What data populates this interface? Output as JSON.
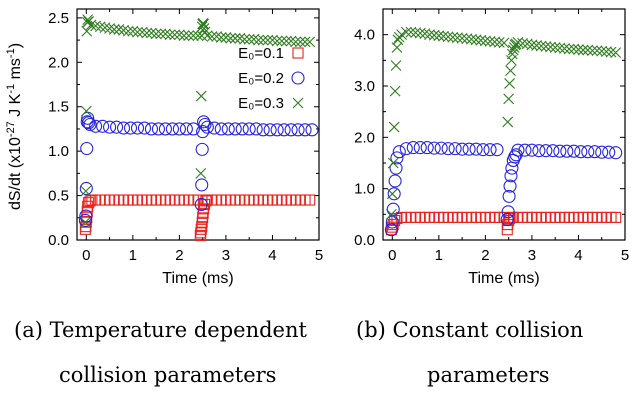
{
  "captions": {
    "a_line1": "(a) Temperature dependent",
    "a_line2": "collision parameters",
    "b_line1": "(b) Constant collision",
    "b_line2": "parameters"
  },
  "y_label_html": "dS/dt (x10<tspan dy=\"-6\" font-size=\"11\">-27</tspan><tspan dy=\"6\"> J K</tspan><tspan dy=\"-6\" font-size=\"11\">-1</tspan><tspan dy=\"6\"> ms</tspan><tspan dy=\"-6\" font-size=\"11\">-1</tspan><tspan dy=\"6\">)</tspan>",
  "legend": [
    {
      "label": "E₀=0.1",
      "marker": "square",
      "color": "#e8241c"
    },
    {
      "label": "E₀=0.2",
      "marker": "circle",
      "color": "#2323e0"
    },
    {
      "label": "E₀=0.3",
      "marker": "x",
      "color": "#2e7d1e"
    }
  ],
  "chart_data": [
    {
      "type": "scatter",
      "panel": "a",
      "xlabel": "Time (ms)",
      "ylabel": "dS/dt (x10^-27 J K^-1 ms^-1)",
      "xlim": [
        -0.2,
        5.0
      ],
      "ylim": [
        0,
        2.6
      ],
      "xticks": [
        0,
        1,
        2,
        3,
        4,
        5
      ],
      "yticks": [
        0.0,
        0.5,
        1.0,
        1.5,
        2.0,
        2.5
      ],
      "ytick_labels": [
        "0.0",
        "0.5",
        "1.0",
        "1.5",
        "2.0",
        "2.5"
      ],
      "legend_position": "top-right",
      "series": [
        {
          "name": "E₀=0.1",
          "marker": "square",
          "color": "#e8241c",
          "x": [
            -0.02,
            -0.01,
            0.0,
            0.01,
            0.02,
            0.03,
            0.05,
            0.08,
            0.12,
            0.2,
            0.3,
            0.4,
            0.5,
            0.6,
            0.7,
            0.8,
            0.9,
            1.0,
            1.1,
            1.2,
            1.3,
            1.4,
            1.5,
            1.6,
            1.7,
            1.8,
            1.9,
            2.0,
            2.1,
            2.2,
            2.3,
            2.4,
            2.45,
            2.46,
            2.47,
            2.48,
            2.49,
            2.5,
            2.51,
            2.52,
            2.54,
            2.57,
            2.6,
            2.7,
            2.8,
            2.9,
            3.0,
            3.1,
            3.2,
            3.3,
            3.4,
            3.5,
            3.6,
            3.7,
            3.8,
            3.9,
            4.0,
            4.1,
            4.2,
            4.3,
            4.4,
            4.5,
            4.6,
            4.7,
            4.8
          ],
          "y": [
            0.12,
            0.15,
            0.2,
            0.25,
            0.32,
            0.38,
            0.42,
            0.44,
            0.45,
            0.45,
            0.45,
            0.45,
            0.45,
            0.45,
            0.45,
            0.45,
            0.45,
            0.45,
            0.45,
            0.45,
            0.45,
            0.45,
            0.45,
            0.45,
            0.45,
            0.45,
            0.45,
            0.45,
            0.45,
            0.45,
            0.45,
            0.45,
            0.05,
            0.08,
            0.12,
            0.15,
            0.2,
            0.25,
            0.3,
            0.35,
            0.4,
            0.44,
            0.45,
            0.45,
            0.45,
            0.45,
            0.45,
            0.45,
            0.45,
            0.45,
            0.45,
            0.45,
            0.45,
            0.45,
            0.45,
            0.45,
            0.45,
            0.45,
            0.45,
            0.45,
            0.45,
            0.45,
            0.45,
            0.45,
            0.45
          ]
        },
        {
          "name": "E₀=0.2",
          "marker": "circle",
          "color": "#2323e0",
          "x": [
            -0.02,
            -0.01,
            0.0,
            0.01,
            0.02,
            0.03,
            0.05,
            0.08,
            0.2,
            0.35,
            0.5,
            0.65,
            0.8,
            0.95,
            1.1,
            1.25,
            1.4,
            1.55,
            1.7,
            1.85,
            2.0,
            2.15,
            2.3,
            2.47,
            2.48,
            2.49,
            2.5,
            2.52,
            2.55,
            2.6,
            2.75,
            2.9,
            3.05,
            3.2,
            3.35,
            3.5,
            3.65,
            3.8,
            3.95,
            4.1,
            4.25,
            4.4,
            4.55,
            4.7,
            4.85
          ],
          "y": [
            0.22,
            0.27,
            0.58,
            1.03,
            1.33,
            1.37,
            1.32,
            1.3,
            1.28,
            1.28,
            1.27,
            1.27,
            1.26,
            1.26,
            1.26,
            1.26,
            1.25,
            1.25,
            1.25,
            1.25,
            1.25,
            1.25,
            1.25,
            0.4,
            0.62,
            1.02,
            1.22,
            1.33,
            1.3,
            1.27,
            1.26,
            1.25,
            1.25,
            1.25,
            1.25,
            1.25,
            1.25,
            1.24,
            1.24,
            1.24,
            1.24,
            1.24,
            1.24,
            1.24,
            1.24
          ]
        },
        {
          "name": "E₀=0.3",
          "marker": "x",
          "color": "#2e7d1e",
          "x": [
            -0.02,
            -0.01,
            0.0,
            0.01,
            0.02,
            0.03,
            0.05,
            0.1,
            0.2,
            0.3,
            0.4,
            0.5,
            0.6,
            0.7,
            0.8,
            0.9,
            1.0,
            1.1,
            1.2,
            1.3,
            1.4,
            1.5,
            1.6,
            1.7,
            1.8,
            1.9,
            2.0,
            2.1,
            2.2,
            2.3,
            2.4,
            2.46,
            2.47,
            2.48,
            2.49,
            2.5,
            2.51,
            2.52,
            2.53,
            2.55,
            2.6,
            2.7,
            2.8,
            2.9,
            3.0,
            3.1,
            3.2,
            3.3,
            3.4,
            3.5,
            3.6,
            3.7,
            3.8,
            3.9,
            4.0,
            4.1,
            4.2,
            4.3,
            4.4,
            4.5,
            4.6,
            4.7,
            4.8
          ],
          "y": [
            0.2,
            0.55,
            1.45,
            2.35,
            2.45,
            2.48,
            2.46,
            2.42,
            2.41,
            2.4,
            2.39,
            2.38,
            2.37,
            2.37,
            2.36,
            2.35,
            2.35,
            2.34,
            2.34,
            2.33,
            2.33,
            2.32,
            2.32,
            2.32,
            2.31,
            2.31,
            2.31,
            2.3,
            2.3,
            2.3,
            2.3,
            0.75,
            1.62,
            2.3,
            2.4,
            2.43,
            2.44,
            2.43,
            2.38,
            2.34,
            2.3,
            2.29,
            2.29,
            2.28,
            2.28,
            2.27,
            2.27,
            2.27,
            2.26,
            2.26,
            2.26,
            2.25,
            2.25,
            2.25,
            2.25,
            2.24,
            2.24,
            2.24,
            2.24,
            2.23,
            2.23,
            2.23,
            2.23
          ]
        }
      ]
    },
    {
      "type": "scatter",
      "panel": "b",
      "xlabel": "Time (ms)",
      "xlim": [
        -0.2,
        5.0
      ],
      "ylim": [
        0,
        4.5
      ],
      "xticks": [
        0,
        1,
        2,
        3,
        4,
        5
      ],
      "yticks": [
        0.0,
        1.0,
        2.0,
        3.0,
        4.0
      ],
      "ytick_labels": [
        "0.0",
        "1.0",
        "2.0",
        "3.0",
        "4.0"
      ],
      "series": [
        {
          "name": "E₀=0.1",
          "marker": "square",
          "color": "#e8241c",
          "x": [
            -0.02,
            0.0,
            0.02,
            0.05,
            0.1,
            0.2,
            0.3,
            0.4,
            0.5,
            0.6,
            0.7,
            0.8,
            0.9,
            1.0,
            1.1,
            1.2,
            1.3,
            1.4,
            1.5,
            1.6,
            1.7,
            1.8,
            1.9,
            2.0,
            2.1,
            2.2,
            2.3,
            2.4,
            2.47,
            2.48,
            2.5,
            2.52,
            2.55,
            2.6,
            2.7,
            2.8,
            2.9,
            3.0,
            3.1,
            3.2,
            3.3,
            3.4,
            3.5,
            3.6,
            3.7,
            3.8,
            3.9,
            4.0,
            4.1,
            4.2,
            4.3,
            4.4,
            4.5,
            4.6,
            4.7,
            4.8
          ],
          "y": [
            0.2,
            0.25,
            0.3,
            0.38,
            0.42,
            0.44,
            0.44,
            0.44,
            0.44,
            0.44,
            0.44,
            0.44,
            0.44,
            0.44,
            0.44,
            0.44,
            0.44,
            0.44,
            0.44,
            0.44,
            0.44,
            0.44,
            0.44,
            0.44,
            0.44,
            0.44,
            0.44,
            0.44,
            0.2,
            0.3,
            0.38,
            0.42,
            0.44,
            0.44,
            0.44,
            0.44,
            0.44,
            0.44,
            0.44,
            0.44,
            0.44,
            0.44,
            0.44,
            0.44,
            0.44,
            0.44,
            0.44,
            0.44,
            0.44,
            0.44,
            0.44,
            0.44,
            0.44,
            0.44,
            0.44,
            0.44
          ]
        },
        {
          "name": "E₀=0.2",
          "marker": "circle",
          "color": "#2323e0",
          "x": [
            -0.02,
            0.0,
            0.02,
            0.04,
            0.06,
            0.08,
            0.1,
            0.15,
            0.3,
            0.45,
            0.6,
            0.75,
            0.9,
            1.05,
            1.2,
            1.35,
            1.5,
            1.65,
            1.8,
            1.95,
            2.1,
            2.25,
            2.47,
            2.49,
            2.51,
            2.53,
            2.55,
            2.57,
            2.6,
            2.63,
            2.66,
            2.7,
            2.85,
            3.0,
            3.15,
            3.3,
            3.45,
            3.6,
            3.75,
            3.9,
            4.05,
            4.2,
            4.35,
            4.5,
            4.65,
            4.8
          ],
          "y": [
            0.2,
            0.35,
            0.6,
            0.9,
            1.15,
            1.4,
            1.6,
            1.72,
            1.78,
            1.8,
            1.8,
            1.8,
            1.79,
            1.79,
            1.78,
            1.78,
            1.77,
            1.77,
            1.77,
            1.76,
            1.76,
            1.76,
            0.4,
            0.55,
            0.85,
            1.05,
            1.25,
            1.4,
            1.55,
            1.62,
            1.66,
            1.75,
            1.75,
            1.75,
            1.74,
            1.74,
            1.74,
            1.73,
            1.73,
            1.73,
            1.72,
            1.72,
            1.72,
            1.71,
            1.71,
            1.7
          ]
        },
        {
          "name": "E₀=0.3",
          "marker": "x",
          "color": "#2e7d1e",
          "x": [
            -0.02,
            0.0,
            0.02,
            0.04,
            0.06,
            0.08,
            0.1,
            0.12,
            0.15,
            0.2,
            0.3,
            0.4,
            0.5,
            0.6,
            0.7,
            0.8,
            0.9,
            1.0,
            1.1,
            1.2,
            1.3,
            1.4,
            1.5,
            1.6,
            1.7,
            1.8,
            1.9,
            2.0,
            2.1,
            2.2,
            2.3,
            2.4,
            2.48,
            2.5,
            2.52,
            2.54,
            2.56,
            2.58,
            2.6,
            2.62,
            2.64,
            2.66,
            2.7,
            2.8,
            2.9,
            3.0,
            3.1,
            3.2,
            3.3,
            3.4,
            3.5,
            3.6,
            3.7,
            3.8,
            3.9,
            4.0,
            4.1,
            4.2,
            4.3,
            4.4,
            4.5,
            4.6,
            4.7,
            4.8
          ],
          "y": [
            0.5,
            0.9,
            1.5,
            2.2,
            2.9,
            3.4,
            3.75,
            3.9,
            3.95,
            4.0,
            4.05,
            4.05,
            4.04,
            4.03,
            4.02,
            4.0,
            3.99,
            3.98,
            3.97,
            3.96,
            3.95,
            3.94,
            3.93,
            3.92,
            3.91,
            3.9,
            3.89,
            3.88,
            3.87,
            3.86,
            3.85,
            3.84,
            2.3,
            2.75,
            3.05,
            3.3,
            3.5,
            3.62,
            3.7,
            3.75,
            3.8,
            3.82,
            3.85,
            3.83,
            3.82,
            3.8,
            3.79,
            3.78,
            3.77,
            3.76,
            3.75,
            3.74,
            3.73,
            3.72,
            3.72,
            3.71,
            3.7,
            3.7,
            3.69,
            3.69,
            3.68,
            3.67,
            3.66,
            3.65
          ]
        }
      ]
    }
  ]
}
